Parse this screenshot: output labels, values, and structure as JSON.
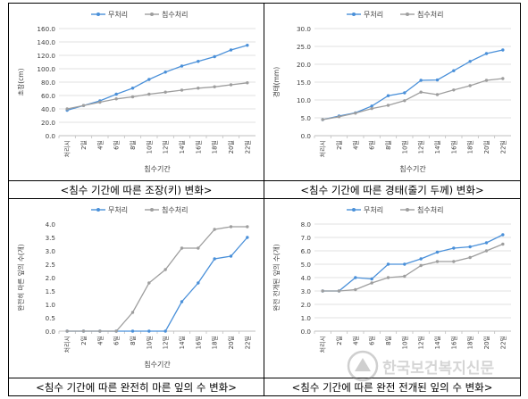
{
  "captions": [
    "<침수 기간에 따른 조장(키) 변화>",
    "<침수 기간에 따른 경태(줄기 두께) 변화>",
    "<침수 기간에 따른 완전히 마른 잎의 수 변화>",
    "<침수 기간에 따른 완전 전개된 잎의 수 변화>"
  ],
  "watermark": "한국보건복지신문",
  "colors": {
    "series1": "#4a90d9",
    "series2": "#9e9e9e",
    "grid": "#d9d9d9",
    "axis": "#bfbfbf"
  },
  "chart_data": [
    {
      "type": "line",
      "categories": [
        "처리시",
        "2일",
        "4일",
        "6일",
        "8일",
        "10일",
        "12일",
        "14일",
        "16일",
        "18일",
        "20일",
        "22일"
      ],
      "series": [
        {
          "name": "무처리",
          "values": [
            38,
            45,
            52,
            62,
            71,
            84,
            95,
            104,
            111,
            118,
            128,
            135
          ]
        },
        {
          "name": "침수처리",
          "values": [
            40,
            45,
            50,
            55,
            58,
            62,
            65,
            68,
            71,
            73,
            76,
            79
          ]
        }
      ],
      "xlabel": "침수기간",
      "ylabel": "초장(cm)",
      "ylim": [
        0,
        160
      ],
      "yticks": [
        0,
        20,
        40,
        60,
        80,
        100,
        120,
        140,
        160
      ],
      "ytick_labels": [
        "0.0",
        "20.0",
        "40.0",
        "60.0",
        "80.0",
        "100.0",
        "120.0",
        "140.0",
        "160.0"
      ],
      "legend_position": "top",
      "grid": true
    },
    {
      "type": "line",
      "categories": [
        "처리시",
        "2일",
        "4일",
        "6일",
        "8일",
        "10일",
        "12일",
        "14일",
        "16일",
        "18일",
        "20일",
        "22일"
      ],
      "series": [
        {
          "name": "무처리",
          "values": [
            4.5,
            5.5,
            6.4,
            8.3,
            11.2,
            12.0,
            15.5,
            15.6,
            18.2,
            20.8,
            23.0,
            24.0
          ]
        },
        {
          "name": "침수처리",
          "values": [
            4.5,
            5.3,
            6.3,
            7.6,
            8.5,
            9.8,
            12.2,
            11.5,
            12.8,
            14.0,
            15.5,
            16.0
          ]
        }
      ],
      "xlabel": "침수기간",
      "ylabel": "경태(mm)",
      "ylim": [
        0,
        30
      ],
      "yticks": [
        0,
        5,
        10,
        15,
        20,
        25,
        30
      ],
      "ytick_labels": [
        "0.0",
        "5.0",
        "10.0",
        "15.0",
        "20.0",
        "25.0",
        "30.0"
      ],
      "legend_position": "top",
      "grid": true
    },
    {
      "type": "line",
      "categories": [
        "처리시",
        "2일",
        "4일",
        "6일",
        "8일",
        "10일",
        "12일",
        "14일",
        "16일",
        "18일",
        "20일",
        "22일"
      ],
      "series": [
        {
          "name": "무처리",
          "values": [
            0,
            0,
            0,
            0,
            0,
            0,
            0,
            1.1,
            1.8,
            2.7,
            2.8,
            3.5
          ]
        },
        {
          "name": "침수처리",
          "values": [
            0,
            0,
            0,
            0,
            0.7,
            1.8,
            2.3,
            3.1,
            3.1,
            3.8,
            3.9,
            3.9
          ]
        }
      ],
      "xlabel": "침수기간",
      "ylabel": "완전히 마른 잎의 수(개)",
      "ylim": [
        0,
        4
      ],
      "yticks": [
        0,
        0.5,
        1,
        1.5,
        2,
        2.5,
        3,
        3.5,
        4
      ],
      "ytick_labels": [
        "0.0",
        "0.5",
        "1.0",
        "1.5",
        "2.0",
        "2.5",
        "3.0",
        "3.5",
        "4.0"
      ],
      "legend_position": "top",
      "grid": false
    },
    {
      "type": "line",
      "categories": [
        "처리시",
        "2일",
        "4일",
        "6일",
        "8일",
        "10일",
        "12일",
        "14일",
        "16일",
        "18일",
        "20일",
        "22일"
      ],
      "series": [
        {
          "name": "무처리",
          "values": [
            3.0,
            3.0,
            4.0,
            3.9,
            5.0,
            5.0,
            5.4,
            5.9,
            6.2,
            6.3,
            6.6,
            7.2
          ]
        },
        {
          "name": "침수처리",
          "values": [
            3.0,
            3.0,
            3.1,
            3.6,
            4.0,
            4.1,
            4.9,
            5.2,
            5.2,
            5.5,
            6.0,
            6.5
          ]
        }
      ],
      "xlabel": "",
      "ylabel": "완전 전개된 잎의 수(개)",
      "ylim": [
        0,
        8
      ],
      "yticks": [
        0,
        1,
        2,
        3,
        4,
        5,
        6,
        7,
        8
      ],
      "ytick_labels": [
        "0.0",
        "1.0",
        "2.0",
        "3.0",
        "4.0",
        "5.0",
        "6.0",
        "7.0",
        "8.0"
      ],
      "legend_position": "top",
      "grid": true
    }
  ]
}
